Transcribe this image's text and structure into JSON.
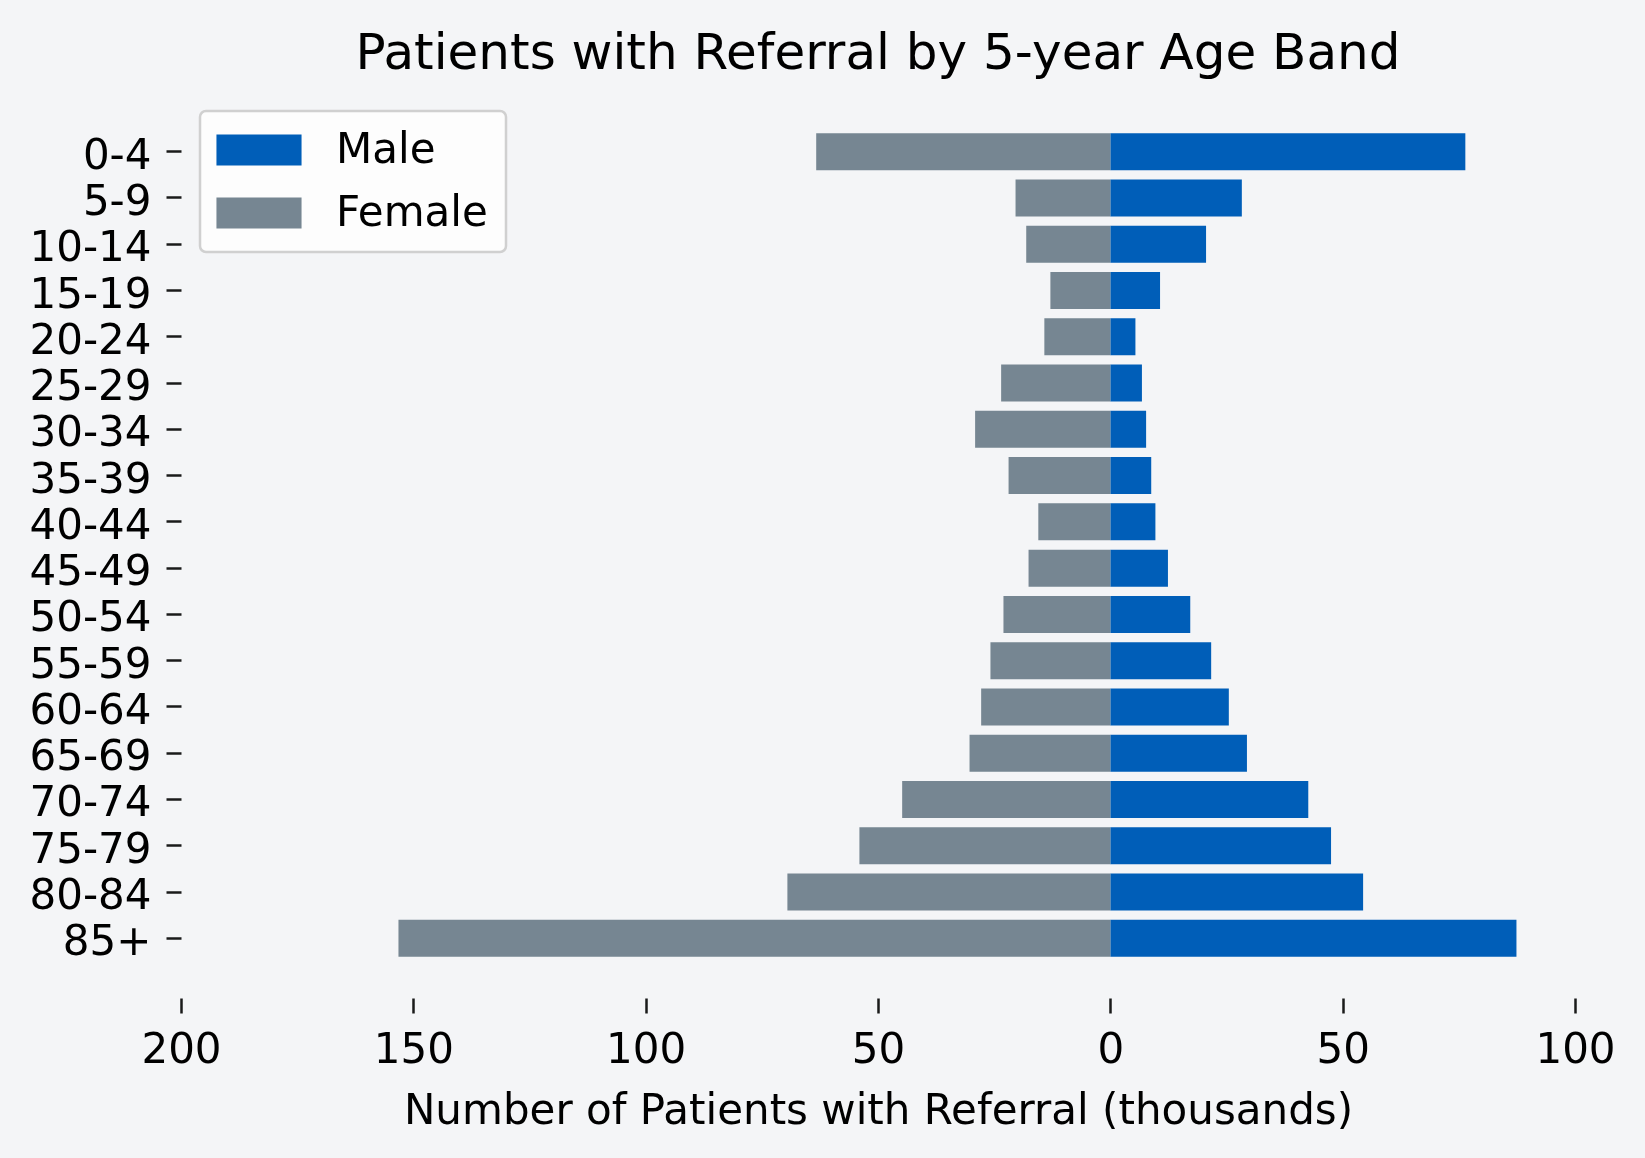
{
  "chart_data": {
    "type": "bar",
    "orientation": "horizontal",
    "stacked": true,
    "title": "Patients with Referral by 5-year Age Band",
    "xlabel": "Number of Patients with Referral (thousands)",
    "categories": [
      "0-4",
      "5-9",
      "10-14",
      "15-19",
      "20-24",
      "25-29",
      "30-34",
      "35-39",
      "40-44",
      "45-49",
      "50-54",
      "55-59",
      "60-64",
      "65-69",
      "70-74",
      "75-79",
      "80-84",
      "85+"
    ],
    "series": [
      {
        "name": "Male",
        "color": "#005eb8",
        "values": [
          76.4,
          28.3,
          20.6,
          10.7,
          5.4,
          6.8,
          7.7,
          8.8,
          9.7,
          12.4,
          17.2,
          21.7,
          25.5,
          29.4,
          42.6,
          47.5,
          54.4,
          87.4
        ]
      },
      {
        "name": "Female",
        "color": "#768692",
        "values": [
          -63.3,
          -20.4,
          -18.1,
          -12.9,
          -14.2,
          -23.5,
          -29.1,
          -21.9,
          -15.5,
          -17.6,
          -23.0,
          -25.8,
          -27.8,
          -30.3,
          -44.8,
          -54.0,
          -69.5,
          -153.2
        ]
      }
    ],
    "xlim": [
      -200,
      100
    ],
    "xticks": [
      {
        "value": -200,
        "label": "200"
      },
      {
        "value": -150,
        "label": "150"
      },
      {
        "value": -100,
        "label": "100"
      },
      {
        "value": -50,
        "label": "50"
      },
      0,
      50,
      100
    ],
    "legend": "top left"
  }
}
